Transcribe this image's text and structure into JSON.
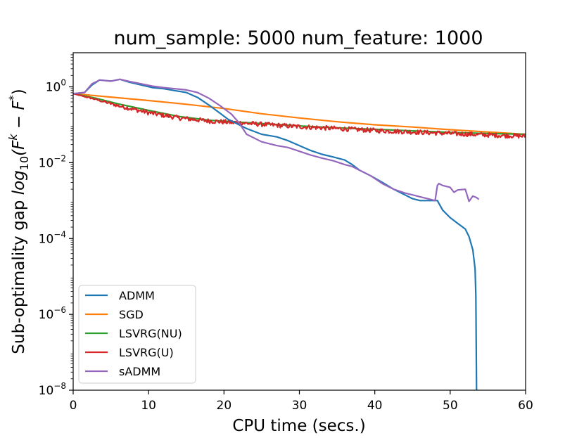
{
  "chart_data": {
    "type": "line",
    "title": "num_sample: 5000 num_feature: 1000",
    "xlabel": "CPU time (secs.)",
    "ylabel_prefix": "Sub-optimality gap ",
    "ylabel_math": "log",
    "ylabel_sub": "10",
    "ylabel_paren_open": "(F",
    "ylabel_sup_k": "k",
    "ylabel_minus": " − F",
    "ylabel_sup_star": "*",
    "ylabel_paren_close": ")",
    "y_scale": "log10",
    "xlim": [
      0,
      60
    ],
    "ylim_log10": [
      -8,
      0.9
    ],
    "x_ticks": [
      0,
      10,
      20,
      30,
      40,
      50,
      60
    ],
    "x_tick_labels": [
      "0",
      "10",
      "20",
      "30",
      "40",
      "50",
      "60"
    ],
    "y_tick_exponents": [
      0,
      -2,
      -4,
      -6,
      -8
    ],
    "y_tick_base": "10",
    "y_tick_exp_labels": [
      "0",
      "−2",
      "−4",
      "−6",
      "−8"
    ],
    "grid": false,
    "legend_position": "lower-left",
    "series": [
      {
        "name": "ADMM",
        "color": "#1f77b4",
        "x": [
          0,
          1.5,
          2.5,
          3.5,
          5,
          6.2,
          7.5,
          9,
          10.5,
          12,
          13.5,
          15,
          16.5,
          18,
          19.5,
          20.5,
          21.5,
          23,
          25,
          27,
          28.5,
          30,
          31.5,
          33,
          34.5,
          36,
          37,
          38,
          39.5,
          41,
          42.5,
          44,
          45,
          46,
          47,
          48,
          48.3,
          49,
          50,
          51,
          52,
          52.5,
          53,
          53.3,
          53.4,
          53.5
        ],
        "y_log10": [
          -0.18,
          -0.15,
          0.05,
          0.18,
          0.15,
          0.2,
          0.12,
          0.05,
          -0.02,
          -0.05,
          -0.1,
          -0.15,
          -0.28,
          -0.48,
          -0.7,
          -0.85,
          -0.95,
          -1.1,
          -1.25,
          -1.32,
          -1.42,
          -1.55,
          -1.68,
          -1.78,
          -1.85,
          -1.93,
          -2.05,
          -2.2,
          -2.35,
          -2.52,
          -2.7,
          -2.85,
          -2.95,
          -3.0,
          -3.0,
          -3.0,
          -3.0,
          -3.25,
          -3.45,
          -3.6,
          -3.75,
          -3.95,
          -4.3,
          -4.8,
          -5.5,
          -8.0
        ]
      },
      {
        "name": "SGD",
        "color": "#ff7f0e",
        "x": [
          0,
          5,
          10,
          15,
          20,
          25,
          30,
          35,
          40,
          45,
          50,
          55,
          60
        ],
        "y_log10": [
          -0.18,
          -0.27,
          -0.36,
          -0.46,
          -0.57,
          -0.71,
          -0.82,
          -0.92,
          -1.0,
          -1.06,
          -1.13,
          -1.19,
          -1.25
        ]
      },
      {
        "name": "LSVRG(NU)",
        "color": "#2ca02c",
        "x": [
          0,
          3,
          6,
          10,
          14,
          18,
          22,
          26,
          30,
          35,
          40,
          45,
          50,
          55,
          60
        ],
        "y_log10": [
          -0.18,
          -0.3,
          -0.45,
          -0.62,
          -0.78,
          -0.88,
          -0.93,
          -0.98,
          -1.03,
          -1.08,
          -1.12,
          -1.16,
          -1.2,
          -1.23,
          -1.25
        ]
      },
      {
        "name": "LSVRG(U)",
        "color": "#d62728",
        "x": [
          0,
          3,
          6,
          10,
          14,
          18,
          22,
          26,
          30,
          35,
          40,
          45,
          50,
          55,
          60
        ],
        "y_log10": [
          -0.18,
          -0.33,
          -0.5,
          -0.68,
          -0.82,
          -0.9,
          -0.95,
          -1.0,
          -1.05,
          -1.1,
          -1.15,
          -1.19,
          -1.23,
          -1.27,
          -1.3
        ],
        "noise_amplitude_log10": 0.06
      },
      {
        "name": "sADMM",
        "color": "#9467bd",
        "x": [
          0,
          1.5,
          2.5,
          3.5,
          5,
          6.2,
          7.5,
          9,
          10.5,
          12,
          13.5,
          15,
          16.5,
          18,
          19.5,
          21,
          22,
          23,
          25,
          27,
          28.5,
          30,
          31.5,
          33,
          34.5,
          36,
          37,
          38,
          39.5,
          41,
          42.5,
          44,
          45,
          46,
          47,
          48,
          48.3,
          48.5,
          49,
          50,
          50.5,
          51,
          52,
          52.5,
          53,
          53.5,
          53.8
        ],
        "y_log10": [
          -0.18,
          -0.15,
          0.08,
          0.18,
          0.15,
          0.2,
          0.14,
          0.08,
          0.02,
          -0.02,
          -0.05,
          -0.08,
          -0.15,
          -0.3,
          -0.5,
          -0.72,
          -0.95,
          -1.25,
          -1.45,
          -1.55,
          -1.6,
          -1.7,
          -1.8,
          -1.88,
          -1.95,
          -2.05,
          -2.1,
          -2.2,
          -2.35,
          -2.55,
          -2.7,
          -2.8,
          -2.85,
          -2.9,
          -2.95,
          -3.0,
          -2.6,
          -2.55,
          -2.6,
          -2.65,
          -2.78,
          -2.72,
          -2.7,
          -3.02,
          -2.88,
          -2.92,
          -2.97
        ]
      }
    ]
  }
}
